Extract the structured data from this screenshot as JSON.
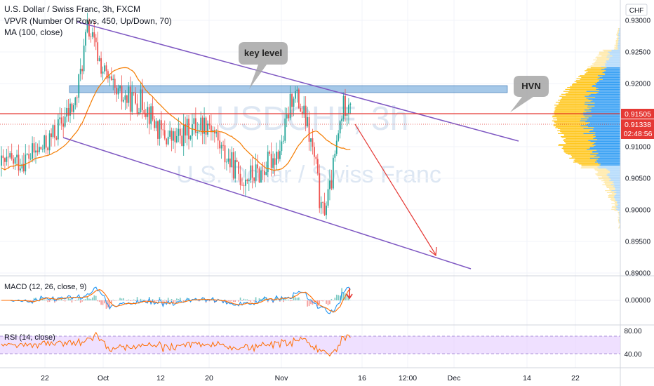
{
  "header": {
    "title": "U.S. Dollar / Swiss Franc, 3h, FXCM",
    "indicator_vpvr": "VPVR (Number Of Rows, 450, Up/Down, 70)",
    "indicator_ma": "MA (100, close)"
  },
  "watermark": {
    "symbol": "USDCHF, 3h",
    "name": "U.S. Dollar / Swiss Franc"
  },
  "currency_label": "CHF",
  "price_axis": {
    "ticks": [
      "0.93000",
      "0.92500",
      "0.92000",
      "0.91000",
      "0.90500",
      "0.90000",
      "0.89500",
      "0.89000"
    ]
  },
  "price_badges": {
    "red_line": "0.91505",
    "last_price": "0.91338",
    "countdown": "02:48:56"
  },
  "annotations": {
    "key_level": "key level",
    "hvn": "HVN"
  },
  "time_axis": {
    "ticks": [
      "22",
      "Oct",
      "12",
      "20",
      "Nov",
      "16",
      "12:00",
      "Dec",
      "14",
      "22"
    ]
  },
  "macd": {
    "label": "MACD (12, 26, close, 9)",
    "tick": "0.00000"
  },
  "rsi": {
    "label": "RSI (14, close)",
    "ticks": [
      "80.00",
      "40.00"
    ]
  },
  "colors": {
    "up": "#26a69a",
    "down": "#ef5350",
    "ma": "#f57c00",
    "channel": "#7e57c2",
    "key_level_zone": "#5b9bd5",
    "red_line": "#e53935",
    "macd_line": "#2196f3",
    "signal_line": "#ff6d00",
    "rsi_line": "#ff6d00",
    "rsi_band": "#e9d5ff",
    "vpvr_up": "#2196f3",
    "vpvr_down": "#ffc107"
  },
  "chart_data": [
    {
      "type": "candlestick",
      "title": "U.S. Dollar / Swiss Franc, 3h, FXCM",
      "ylim": [
        0.889,
        0.931
      ],
      "x_ticks": [
        "22",
        "Oct",
        "12",
        "20",
        "Nov",
        "16",
        "12:00",
        "Dec",
        "14",
        "22"
      ],
      "y_ticks": [
        0.93,
        0.925,
        0.92,
        0.91,
        0.905,
        0.9,
        0.895,
        0.89
      ],
      "approx_close_path": [
        {
          "x": "Sep 15",
          "y": 0.908
        },
        {
          "x": "Sep 20",
          "y": 0.91
        },
        {
          "x": "Sep 22",
          "y": 0.917
        },
        {
          "x": "Sep 25",
          "y": 0.929
        },
        {
          "x": "Sep 28",
          "y": 0.922
        },
        {
          "x": "Oct 1",
          "y": 0.918
        },
        {
          "x": "Oct 5",
          "y": 0.917
        },
        {
          "x": "Oct 10",
          "y": 0.912
        },
        {
          "x": "Oct 12",
          "y": 0.911
        },
        {
          "x": "Oct 15",
          "y": 0.913
        },
        {
          "x": "Oct 18",
          "y": 0.914
        },
        {
          "x": "Oct 20",
          "y": 0.909
        },
        {
          "x": "Oct 23",
          "y": 0.905
        },
        {
          "x": "Oct 27",
          "y": 0.906
        },
        {
          "x": "Oct 30",
          "y": 0.91
        },
        {
          "x": "Nov 1",
          "y": 0.919
        },
        {
          "x": "Nov 3",
          "y": 0.914
        },
        {
          "x": "Nov 5",
          "y": 0.907
        },
        {
          "x": "Nov 6",
          "y": 0.899
        },
        {
          "x": "Nov 7",
          "y": 0.903
        },
        {
          "x": "Nov 9",
          "y": 0.916
        },
        {
          "x": "Nov 11",
          "y": 0.918
        },
        {
          "x": "Nov 12",
          "y": 0.913
        }
      ]
    },
    {
      "type": "line",
      "title": "MACD (12, 26, close, 9)",
      "y_ticks": [
        0.0
      ]
    },
    {
      "type": "line",
      "title": "RSI (14, close)",
      "ylim": [
        20,
        90
      ],
      "y_ticks": [
        80,
        40
      ],
      "band": [
        30,
        70
      ]
    }
  ]
}
